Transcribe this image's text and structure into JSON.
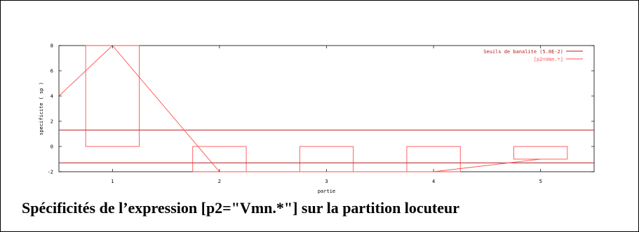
{
  "caption": "Spécificités de l’expression [p2=\"Vmn.*\"] sur la partition locuteur",
  "chart_data": {
    "type": "bar",
    "xlabel": "partie",
    "ylabel": "specificite ( sp )",
    "xlim": [
      0.5,
      5.5
    ],
    "ylim": [
      -2,
      8
    ],
    "xticks": [
      1,
      2,
      3,
      4,
      5
    ],
    "yticks": [
      -2,
      0,
      2,
      4,
      6,
      8
    ],
    "legend_position": "top-right",
    "legend": [
      {
        "label": "Seuils de banalite (5.0E-2)",
        "color": "#b22222"
      },
      {
        "label": "[p2=Vmn.*]",
        "color": "#ff5050"
      }
    ],
    "thresholds": [
      1.3,
      -1.3
    ],
    "bars": {
      "categories": [
        1,
        2,
        3,
        4,
        5
      ],
      "values": [
        8,
        -2,
        -2,
        -2,
        -1
      ],
      "color": "#ff5050"
    },
    "line": {
      "x": [
        0.5,
        1,
        2,
        3,
        4,
        5
      ],
      "y": [
        4,
        8,
        -2,
        -2,
        -2,
        -1
      ],
      "color": "#ff5050"
    }
  }
}
